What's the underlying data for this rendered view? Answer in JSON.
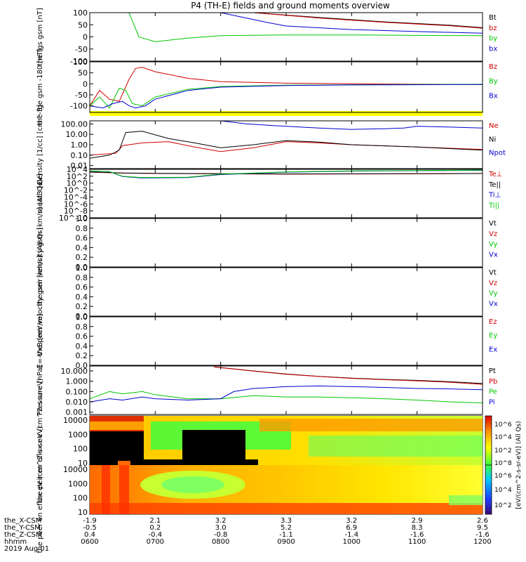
{
  "title": "P4 (TH-E) fields and ground moments overview",
  "footer": {
    "row_labels": [
      "the_X-CSM",
      "the_Y-CSM",
      "the_Z-CSM",
      "hhmm",
      "2019 Aug 01"
    ],
    "columns": [
      {
        "x": "-1.9",
        "y": "-0.5",
        "z": "0.4",
        "hhmm": "0600"
      },
      {
        "x": "2.1",
        "y": "0.2",
        "z": "-0.4",
        "hhmm": "0700"
      },
      {
        "x": "3.2",
        "y": "3.0",
        "z": "-0.8",
        "hhmm": "0800"
      },
      {
        "x": "3.3",
        "y": "5.2",
        "z": "-1.1",
        "hhmm": "0900"
      },
      {
        "x": "3.2",
        "y": "6.9",
        "z": "-1.4",
        "hhmm": "1000"
      },
      {
        "x": "2.9",
        "y": "8.3",
        "z": "-1.6",
        "hhmm": "1100"
      },
      {
        "x": "2.6",
        "y": "9.5",
        "z": "-1.6",
        "hhmm": "1200"
      }
    ]
  },
  "colorbar": {
    "label": "[eV/(cm^2-s-sr-eV)] (All Qs)",
    "ticks": [
      "10^6",
      "10^4",
      "10^2",
      "10^8",
      "10^6",
      "10^4",
      "10^2"
    ]
  },
  "chart_data": [
    {
      "type": "line",
      "panel": "fgs",
      "ylabel": "the fgs gsm [nT]",
      "ylim": [
        -100,
        100
      ],
      "yticks": [
        "100",
        "50",
        "0",
        "-50",
        "-100"
      ],
      "legend": [
        {
          "name": "Bt",
          "color": "#000000"
        },
        {
          "name": "bz",
          "color": "#d00000"
        },
        {
          "name": "by",
          "color": "#00c800"
        },
        {
          "name": "bx",
          "color": "#0000d0"
        }
      ],
      "series": [
        {
          "name": "Bt",
          "color": "#000000",
          "x": [
            0.5,
            1.5,
            2.5,
            3.5,
            4.5,
            5.5,
            6.0
          ],
          "y": [
            100,
            100,
            100,
            80,
            62,
            48,
            38
          ]
        },
        {
          "name": "bz",
          "color": "#d00000",
          "x": [
            0.5,
            1.5,
            2.5,
            3.5,
            4.5,
            5.5,
            6.0
          ],
          "y": [
            100,
            100,
            100,
            78,
            60,
            46,
            36
          ]
        },
        {
          "name": "by",
          "color": "#00c800",
          "x": [
            0.6,
            0.75,
            1.0,
            1.5,
            2.0,
            3.0,
            4.0,
            5.0,
            6.0
          ],
          "y": [
            100,
            0,
            -20,
            -5,
            5,
            8,
            8,
            6,
            5
          ]
        },
        {
          "name": "bx",
          "color": "#0000d0",
          "x": [
            0.4,
            0.45,
            1.0,
            2.0,
            2.7,
            3.0,
            4.0,
            5.0,
            6.0
          ],
          "y": [
            100,
            100,
            100,
            100,
            60,
            45,
            30,
            22,
            15
          ]
        }
      ]
    },
    {
      "type": "line",
      "panel": "fge",
      "ylabel": "the fge gsm -180 [nT]",
      "ylim": [
        -130,
        100
      ],
      "yticks": [
        "100",
        "50",
        "0",
        "-50",
        "-100"
      ],
      "legend": [
        {
          "name": "Bz",
          "color": "#d00000"
        },
        {
          "name": "By",
          "color": "#00c800"
        },
        {
          "name": "Bx",
          "color": "#0000d0"
        }
      ],
      "series": [
        {
          "name": "Bz",
          "color": "#d00000",
          "x": [
            0.0,
            0.15,
            0.3,
            0.45,
            0.6,
            0.7,
            0.8,
            1.0,
            1.5,
            2.0,
            3.0,
            4.0,
            5.0,
            6.0
          ],
          "y": [
            -100,
            -30,
            -70,
            -80,
            20,
            70,
            75,
            55,
            25,
            10,
            3,
            0,
            -2,
            -3
          ]
        },
        {
          "name": "By",
          "color": "#00c800",
          "x": [
            0.0,
            0.15,
            0.3,
            0.45,
            0.55,
            0.65,
            0.8,
            1.0,
            1.5,
            2.0,
            3.0,
            4.0,
            5.0,
            6.0
          ],
          "y": [
            -100,
            -60,
            -110,
            -20,
            -30,
            -90,
            -100,
            -60,
            -25,
            -12,
            -6,
            -4,
            -3,
            -2
          ]
        },
        {
          "name": "Bx",
          "color": "#0000d0",
          "x": [
            0.0,
            0.2,
            0.35,
            0.5,
            0.6,
            0.7,
            0.85,
            1.0,
            1.5,
            2.0,
            3.0,
            4.0,
            5.0,
            6.0
          ],
          "y": [
            -100,
            -110,
            -90,
            -80,
            -100,
            -110,
            -100,
            -70,
            -30,
            -15,
            -8,
            -5,
            -4,
            -3
          ]
        }
      ]
    },
    {
      "type": "line",
      "panel": "density",
      "scale": "log",
      "ylabel": "Density [1/cc] [cm^-3]",
      "ylim": [
        0.005,
        200
      ],
      "yticks": [
        "100.00",
        "10.00",
        "1.00",
        "0.10",
        "0.01"
      ],
      "legend": [
        {
          "name": "Ne",
          "color": "#d00000"
        },
        {
          "name": "Ni",
          "color": "#000000"
        },
        {
          "name": "Npot",
          "color": "#0000d0"
        }
      ],
      "series": [
        {
          "name": "Ne",
          "color": "#d00000",
          "x": [
            0.0,
            0.4,
            0.5,
            0.8,
            1.2,
            1.6,
            2.0,
            2.5,
            3.0,
            3.5,
            4.0,
            5.0,
            6.0
          ],
          "y": [
            0.1,
            0.15,
            0.8,
            1.5,
            2.0,
            0.6,
            0.22,
            0.5,
            2.0,
            1.5,
            1.0,
            0.6,
            0.35
          ]
        },
        {
          "name": "Ni",
          "color": "#000000",
          "x": [
            0.0,
            0.3,
            0.45,
            0.55,
            0.8,
            1.2,
            1.6,
            2.0,
            2.5,
            3.0,
            3.5,
            4.0,
            5.0,
            6.0
          ],
          "y": [
            0.05,
            0.1,
            0.3,
            15,
            20,
            4,
            1.5,
            0.5,
            1.0,
            2.5,
            1.8,
            1.0,
            0.6,
            0.3
          ]
        },
        {
          "name": "Npot",
          "color": "#0000d0",
          "x": [
            1.9,
            2.0,
            2.4,
            2.8,
            3.0,
            3.5,
            4.0,
            4.5,
            4.8,
            5.0,
            5.5,
            6.0
          ],
          "y": [
            200,
            200,
            100,
            70,
            60,
            40,
            30,
            35,
            40,
            60,
            50,
            40
          ]
        }
      ]
    },
    {
      "type": "line",
      "panel": "temperature",
      "scale": "log",
      "ylabel": "moat3 [eV]",
      "ylim": [
        1e-10,
        10000.0
      ],
      "yticks": [
        "10^4",
        "10^2",
        "10^0",
        "10^-2",
        "10^-4",
        "10^-6",
        "10^-8",
        "10^-10"
      ],
      "legend": [
        {
          "name": "Te⊥",
          "color": "#d00000"
        },
        {
          "name": "Te||",
          "color": "#000000"
        },
        {
          "name": "Ti⊥",
          "color": "#0000d0"
        },
        {
          "name": "Ti||",
          "color": "#00c800"
        }
      ],
      "series": [
        {
          "name": "Te⊥",
          "color": "#d00000",
          "x": [
            0.0,
            0.5,
            1.0,
            2.0,
            3.0,
            4.0,
            5.0,
            6.0
          ],
          "y": [
            1500,
            800,
            600,
            500,
            400,
            450,
            500,
            600
          ]
        },
        {
          "name": "Te||",
          "color": "#000000",
          "x": [
            0.0,
            0.5,
            1.0,
            2.0,
            3.0,
            4.0,
            5.0,
            6.0
          ],
          "y": [
            1800,
            900,
            700,
            550,
            450,
            500,
            550,
            650
          ]
        },
        {
          "name": "Ti⊥",
          "color": "#0000d0",
          "x": [
            0.0,
            0.3,
            0.5,
            0.8,
            1.5,
            2.0,
            3.0,
            4.0,
            5.0,
            6.0
          ],
          "y": [
            3000,
            2000,
            80,
            30,
            40,
            300,
            1500,
            3000,
            4000,
            5000
          ]
        },
        {
          "name": "Ti||",
          "color": "#00c800",
          "x": [
            0.0,
            0.3,
            0.5,
            0.8,
            1.5,
            2.0,
            3.0,
            4.0,
            5.0,
            6.0
          ],
          "y": [
            3500,
            2200,
            100,
            40,
            50,
            400,
            1800,
            3500,
            4500,
            6000
          ]
        }
      ]
    },
    {
      "type": "line",
      "panel": "peir_velocity",
      "ylabel": "the peir velocity gsm [km/s] (All Qs)",
      "ylim": [
        0,
        1
      ],
      "yticks": [
        "1.0",
        "0.8",
        "0.6",
        "0.4",
        "0.2",
        "0.0"
      ],
      "legend": [
        {
          "name": "Vt",
          "color": "#000000"
        },
        {
          "name": "Vz",
          "color": "#d00000"
        },
        {
          "name": "Vy",
          "color": "#00c800"
        },
        {
          "name": "Vx",
          "color": "#0000d0"
        }
      ],
      "series": []
    },
    {
      "type": "line",
      "panel": "peer_velocity",
      "ylabel": "the peer velocity gsm [km/s] (All Qs)",
      "ylim": [
        0,
        1
      ],
      "yticks": [
        "1.0",
        "0.8",
        "0.6",
        "0.4",
        "0.2",
        "0.0"
      ],
      "legend": [
        {
          "name": "Vt",
          "color": "#000000"
        },
        {
          "name": "Vz",
          "color": "#d00000"
        },
        {
          "name": "Vy",
          "color": "#00c800"
        },
        {
          "name": "Vx",
          "color": "#0000d0"
        }
      ],
      "series": []
    },
    {
      "type": "line",
      "panel": "efield",
      "ylabel": "E=-VxB [mV/m]",
      "ylim": [
        0,
        1
      ],
      "yticks": [
        "1.0",
        "0.8",
        "0.6",
        "0.4",
        "0.2",
        "0.0"
      ],
      "legend": [
        {
          "name": "Ez",
          "color": "#d00000"
        },
        {
          "name": "Ey",
          "color": "#00c800"
        },
        {
          "name": "Ex",
          "color": "#0000d0"
        }
      ],
      "series": []
    },
    {
      "type": "line",
      "panel": "pressure",
      "scale": "log",
      "ylabel": "Pressure [nPa]",
      "ylim": [
        0.0006,
        30
      ],
      "yticks": [
        "10.000",
        "1.000",
        "0.100",
        "0.010",
        "0.001"
      ],
      "legend": [
        {
          "name": "Pt",
          "color": "#000000"
        },
        {
          "name": "Pb",
          "color": "#d00000"
        },
        {
          "name": "Pe",
          "color": "#00c800"
        },
        {
          "name": "Pi",
          "color": "#0000d0"
        }
      ],
      "series": [
        {
          "name": "Pt",
          "color": "#000000",
          "x": [
            1.9,
            2.5,
            3.0,
            3.5,
            4.0,
            4.5,
            5.0,
            5.5,
            6.0
          ],
          "y": [
            25,
            10,
            5,
            3,
            2,
            1.5,
            1.2,
            0.9,
            0.6
          ]
        },
        {
          "name": "Pb",
          "color": "#d00000",
          "x": [
            1.9,
            2.5,
            3.0,
            3.5,
            4.0,
            4.5,
            5.0,
            5.5,
            6.0
          ],
          "y": [
            24,
            9.5,
            4.8,
            2.9,
            1.9,
            1.4,
            1.1,
            0.8,
            0.5
          ]
        },
        {
          "name": "Pe",
          "color": "#00c800",
          "x": [
            0.0,
            0.3,
            0.5,
            0.8,
            1.0,
            1.5,
            2.0,
            2.5,
            3.0,
            3.5,
            4.0,
            4.5,
            5.0,
            5.5,
            6.0
          ],
          "y": [
            0.02,
            0.1,
            0.06,
            0.1,
            0.05,
            0.02,
            0.02,
            0.04,
            0.03,
            0.03,
            0.025,
            0.02,
            0.015,
            0.01,
            0.008
          ]
        },
        {
          "name": "Pi",
          "color": "#0000d0",
          "x": [
            0.0,
            0.3,
            0.5,
            0.8,
            1.0,
            1.5,
            2.0,
            2.2,
            2.5,
            3.0,
            3.5,
            4.0,
            4.5,
            5.0,
            5.5,
            6.0
          ],
          "y": [
            0.01,
            0.02,
            0.015,
            0.03,
            0.02,
            0.015,
            0.02,
            0.1,
            0.2,
            0.3,
            0.35,
            0.3,
            0.25,
            0.2,
            0.18,
            0.15
          ]
        }
      ]
    },
    {
      "type": "heatmap",
      "panel": "peir_eflux",
      "ylabel": "the peir en eflux eV (cm^2-s-sr-eV)",
      "yticks": [
        "10000",
        "1000",
        "100",
        "10"
      ],
      "scale": "log"
    },
    {
      "type": "heatmap",
      "panel": "peer_eflux",
      "ylabel": "the peer en eflux eV (cm^2-s-sr-eV)",
      "yticks": [
        "10000",
        "1000",
        "100",
        "10"
      ],
      "scale": "log"
    }
  ]
}
